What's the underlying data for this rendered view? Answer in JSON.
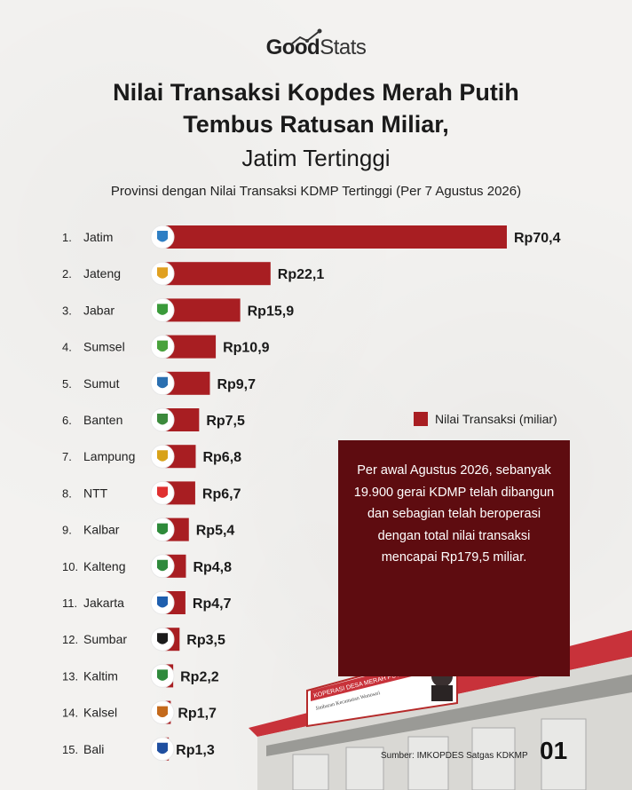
{
  "brand": {
    "part1": "Good",
    "part2": "Stats"
  },
  "title": {
    "line1": "Nilai Transaksi Kopdes Merah Putih",
    "line2": "Tembus Ratusan Miliar,",
    "line3": "Jatim Tertinggi"
  },
  "subtitle": "Provinsi dengan Nilai Transaksi KDMP Tertinggi (Per 7 Agustus 2026)",
  "legend": {
    "label": "Nilai Transaksi (miliar)"
  },
  "infobox": {
    "text": "Per awal Agustus 2026, sebanyak 19.900 gerai KDMP telah dibangun dan sebagian telah beroperasi dengan total nilai transaksi mencapai Rp179,5 miliar."
  },
  "building_sign": {
    "line1": "KOPERASI DESA MERAH PUTIH",
    "line2": "Jimbaran Kecamatan Wonosari"
  },
  "source": "Sumber: IMKOPDES Satgas KDKMP",
  "page_number": "01",
  "colors": {
    "bar": "#a81e22",
    "infobox": "#5e0c10"
  },
  "chart_data": {
    "type": "bar",
    "orientation": "horizontal",
    "categories": [
      "Jatim",
      "Jateng",
      "Jabar",
      "Sumsel",
      "Sumut",
      "Banten",
      "Lampung",
      "NTT",
      "Kalbar",
      "Kalteng",
      "Jakarta",
      "Sumbar",
      "Kaltim",
      "Kalsel",
      "Bali"
    ],
    "ranks": [
      "1.",
      "2.",
      "3.",
      "4.",
      "5.",
      "6.",
      "7.",
      "8.",
      "9.",
      "10.",
      "11.",
      "12.",
      "13.",
      "14.",
      "15."
    ],
    "values": [
      70.4,
      22.1,
      15.9,
      10.9,
      9.7,
      7.5,
      6.8,
      6.7,
      5.4,
      4.8,
      4.7,
      3.5,
      2.2,
      1.7,
      1.3
    ],
    "value_labels": [
      "Rp70,4",
      "Rp22,1",
      "Rp15,9",
      "Rp10,9",
      "Rp9,7",
      "Rp7,5",
      "Rp6,8",
      "Rp6,7",
      "Rp5,4",
      "Rp4,8",
      "Rp4,7",
      "Rp3,5",
      "Rp2,2",
      "Rp1,7",
      "Rp1,3"
    ],
    "icons": [
      "jatim-emblem-icon",
      "jateng-emblem-icon",
      "jabar-emblem-icon",
      "sumsel-emblem-icon",
      "sumut-emblem-icon",
      "banten-emblem-icon",
      "lampung-emblem-icon",
      "ntt-emblem-icon",
      "kalbar-emblem-icon",
      "kalteng-emblem-icon",
      "jakarta-emblem-icon",
      "sumbar-emblem-icon",
      "kaltim-emblem-icon",
      "kalsel-emblem-icon",
      "bali-emblem-icon"
    ],
    "icon_colors": [
      "#2e7fc4",
      "#e0a020",
      "#3a9a3a",
      "#49a23c",
      "#2a6fb0",
      "#3c8a3c",
      "#d8a218",
      "#e03030",
      "#2e8a3a",
      "#2f8a3c",
      "#1f5fae",
      "#1c1c1c",
      "#2f8a3c",
      "#c46a1c",
      "#1f4fa0"
    ],
    "legend": "Nilai Transaksi (miliar)",
    "grid": false
  }
}
